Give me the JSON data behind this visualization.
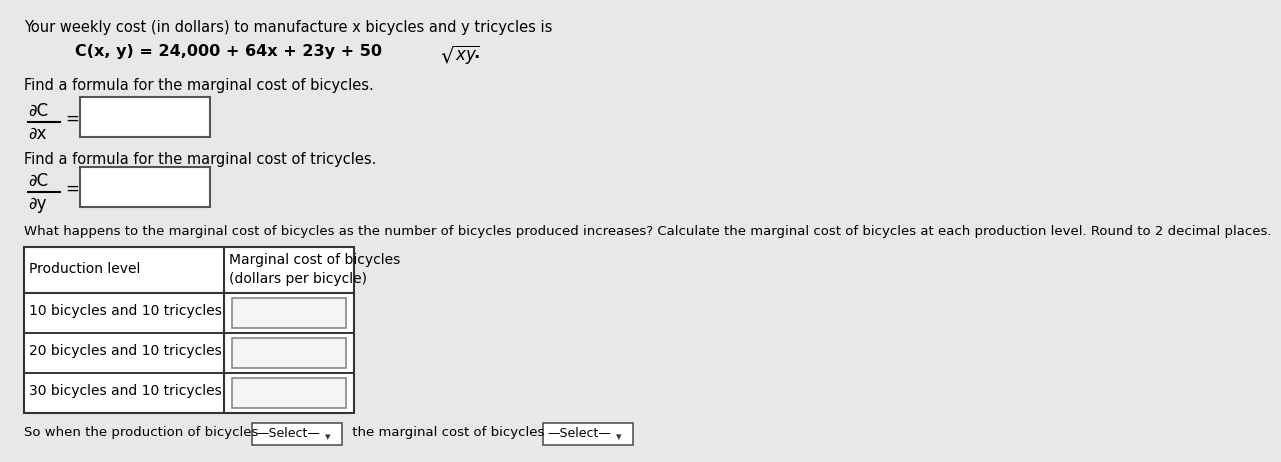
{
  "bg_color": "#e8e8e8",
  "text_color": "#000000",
  "line1": "Your weekly cost (in dollars) to manufacture x bicycles and y tricycles is",
  "formula_normal": "C(x, y) = 24,000 + 64x + 23y + 50",
  "formula_sqrt": "xy",
  "formula_dot": ".",
  "prompt1": "Find a formula for the marginal cost of bicycles.",
  "prompt2": "Find a formula for the marginal cost of tricycles.",
  "prompt3": "What happens to the marginal cost of bicycles as the number of bicycles produced increases? Calculate the marginal cost of bicycles at each production level. Round to 2 decimal places.",
  "table_header1": "Production level",
  "table_header2a": "Marginal cost of bicycles",
  "table_header2b": "(dollars per bicycle)",
  "row1": "10 bicycles and 10 tricycles",
  "row2": "20 bicycles and 10 tricycles",
  "row3": "30 bicycles and 10 tricycles",
  "footer_pre": "So when the production of bicycles ",
  "footer_sel1": "—Select—",
  "footer_mid": " the marginal cost of bicycles ",
  "footer_sel2": "—Select—"
}
